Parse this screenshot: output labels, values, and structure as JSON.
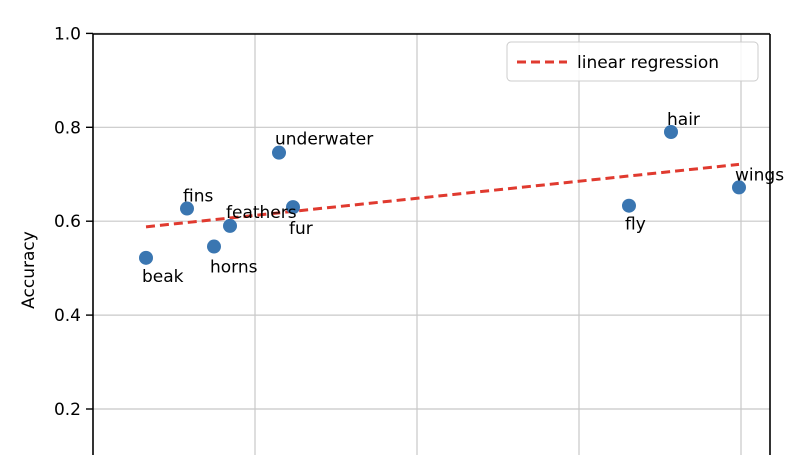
{
  "chart_data": {
    "type": "scatter",
    "ylabel": "Accuracy",
    "ylim": [
      0.09,
      1.0
    ],
    "y_ticks": [
      0.2,
      0.4,
      0.6,
      0.8,
      1.0
    ],
    "y_tick_labels": [
      "0.2",
      "0.4",
      "0.6",
      "0.8",
      "1.0"
    ],
    "grid": true,
    "legend": {
      "placement": "top-right",
      "entries": [
        "linear regression"
      ]
    },
    "series": [
      {
        "values": [
          {
            "label": "beak",
            "y": 0.522
          },
          {
            "label": "fins",
            "y": 0.627
          },
          {
            "label": "horns",
            "y": 0.546
          },
          {
            "label": "feathers",
            "y": 0.59
          },
          {
            "label": "underwater",
            "y": 0.746
          },
          {
            "label": "fur",
            "y": 0.63
          },
          {
            "label": "fly",
            "y": 0.633
          },
          {
            "label": "hair",
            "y": 0.79
          },
          {
            "label": "wings",
            "y": 0.672
          }
        ]
      }
    ],
    "regression": {
      "name": "linear regression",
      "y_start": 0.588,
      "y_end": 0.721
    },
    "colors": {
      "points": "#3a76b1",
      "regression": "#e03a2f",
      "grid": "#c8c8c8"
    }
  }
}
